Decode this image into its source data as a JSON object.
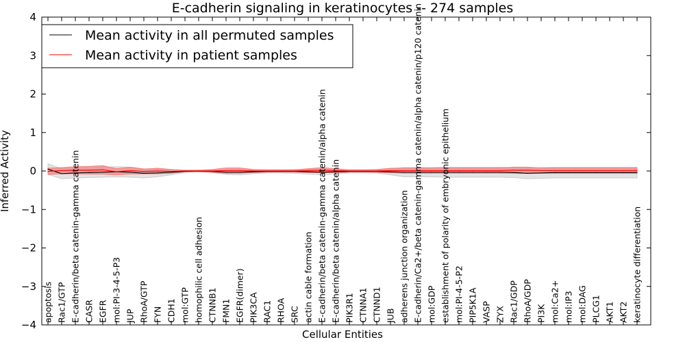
{
  "chart_data": {
    "type": "line",
    "title": "E-cadherin signaling in keratinocytes -- 274 samples",
    "xlabel": "Cellular Entities",
    "ylabel": "Inferred Activity",
    "ylim": [
      -4,
      4
    ],
    "yticks": [
      "−4",
      "−3",
      "−2",
      "−1",
      "0",
      "1",
      "2",
      "3",
      "4"
    ],
    "grid": false,
    "legend_position": "top-left",
    "categories": [
      "apoptosis",
      "Rac1/GTP",
      "E-cadherin/beta catenin-gamma catenin",
      "CASR",
      "EGFR",
      "mol:PI-3-4-5-P3",
      "JUP",
      "RhoA/GTP",
      "FYN",
      "CDH1",
      "mol:GTP",
      "homophilic cell adhesion",
      "CTNNB1",
      "FMN1",
      "EGFR(dimer)",
      "PIK3CA",
      "RAC1",
      "RHOA",
      "SRC",
      "actin cable formation",
      "E-cadherin/beta catenin-gamma catenin/alpha catenin",
      "E-cadherin/beta catenin/alpha catenin",
      "PIK3R1",
      "CTNNA1",
      "CTNND1",
      "JUB",
      "adherens junction organization",
      "E-cadherin/Ca2+/beta catenin-gamma catenin/alpha catenin/p120 catenin",
      "mol:GDP",
      "establishment of polarity of embryonic epithelium",
      "mol:PI-4-5-P2",
      "PIP5K1A",
      "VASP",
      "ZYX",
      "Rac1/GDP",
      "RhoA/GDP",
      "PI3K",
      "mol:Ca2+",
      "mol:IP3",
      "mol:DAG",
      "PLCG1",
      "AKT1",
      "AKT2",
      "keratinocyte differentiation"
    ],
    "series": [
      {
        "name": "Mean activity in all permuted samples",
        "color": "#000000",
        "band_color": "#cccccc",
        "values": [
          0.05,
          -0.07,
          -0.05,
          -0.04,
          -0.03,
          -0.02,
          -0.03,
          -0.06,
          -0.05,
          -0.03,
          -0.01,
          0.0,
          -0.01,
          -0.03,
          -0.03,
          -0.02,
          -0.01,
          -0.01,
          -0.01,
          -0.02,
          -0.03,
          -0.02,
          -0.01,
          -0.01,
          -0.01,
          -0.02,
          -0.03,
          -0.03,
          -0.03,
          -0.03,
          -0.03,
          -0.03,
          -0.03,
          -0.03,
          -0.04,
          -0.06,
          -0.05,
          -0.04,
          -0.04,
          -0.04,
          -0.04,
          -0.04,
          -0.04,
          -0.04
        ],
        "band": [
          0.14,
          0.13,
          0.13,
          0.13,
          0.13,
          0.13,
          0.13,
          0.12,
          0.1,
          0.07,
          0.03,
          0.02,
          0.03,
          0.06,
          0.07,
          0.05,
          0.04,
          0.04,
          0.05,
          0.06,
          0.07,
          0.05,
          0.04,
          0.04,
          0.04,
          0.08,
          0.12,
          0.12,
          0.12,
          0.13,
          0.13,
          0.13,
          0.13,
          0.13,
          0.13,
          0.14,
          0.14,
          0.14,
          0.14,
          0.14,
          0.14,
          0.14,
          0.14,
          0.14
        ]
      },
      {
        "name": "Mean activity in patient samples",
        "color": "#ff0000",
        "band_color": "#f08080",
        "values": [
          -0.01,
          0.01,
          0.02,
          0.02,
          0.03,
          -0.02,
          0.01,
          -0.01,
          0.0,
          -0.01,
          0.0,
          0.0,
          0.0,
          0.01,
          0.01,
          0.0,
          0.0,
          0.0,
          0.0,
          0.01,
          0.02,
          0.01,
          0.0,
          0.0,
          0.0,
          0.01,
          0.01,
          0.01,
          0.01,
          0.01,
          0.01,
          0.01,
          0.01,
          0.01,
          0.02,
          0.02,
          0.01,
          0.01,
          0.01,
          0.01,
          0.01,
          0.01,
          0.01,
          0.01
        ],
        "band": [
          0.08,
          0.08,
          0.09,
          0.1,
          0.11,
          0.08,
          0.09,
          0.06,
          0.07,
          0.05,
          0.02,
          0.02,
          0.04,
          0.07,
          0.07,
          0.04,
          0.03,
          0.03,
          0.03,
          0.05,
          0.07,
          0.05,
          0.03,
          0.03,
          0.04,
          0.06,
          0.07,
          0.07,
          0.07,
          0.07,
          0.07,
          0.07,
          0.07,
          0.07,
          0.08,
          0.08,
          0.07,
          0.07,
          0.07,
          0.07,
          0.07,
          0.07,
          0.07,
          0.07
        ]
      }
    ]
  }
}
